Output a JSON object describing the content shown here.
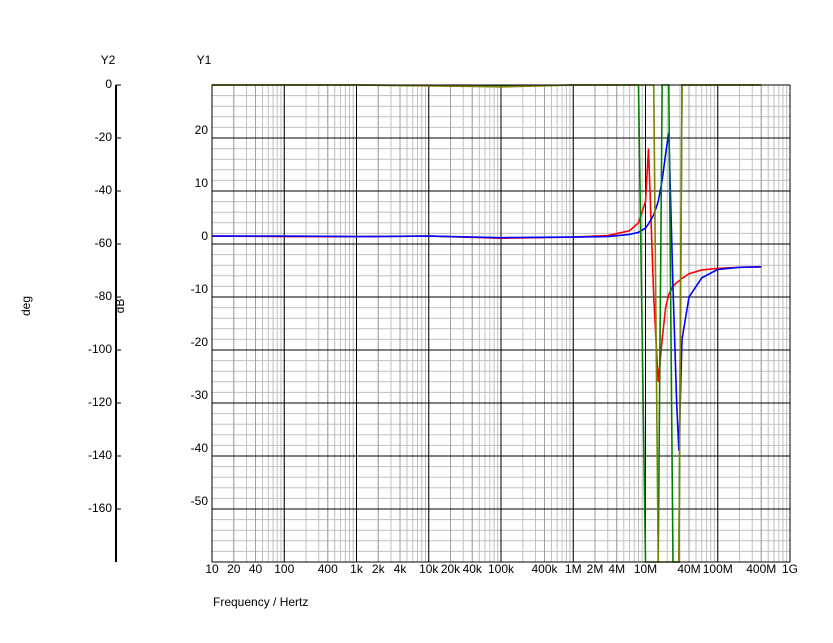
{
  "chart_data": {
    "type": "line",
    "x_label": "Frequency / Hertz",
    "y_label": "dB",
    "y2_label": "deg",
    "y_axis_title": "Y1",
    "y2_axis_title": "Y2",
    "xscale": "log",
    "grid": true,
    "xlim": [
      10,
      1000000000
    ],
    "xticks": [
      10,
      20,
      40,
      100,
      400,
      {
        "value": 1000,
        "label": "1k"
      },
      {
        "value": 2000,
        "label": "2k"
      },
      {
        "value": 4000,
        "label": "4k"
      },
      {
        "value": 10000,
        "label": "10k"
      },
      {
        "value": 20000,
        "label": "20k"
      },
      {
        "value": 40000,
        "label": "40k"
      },
      {
        "value": 100000,
        "label": "100k"
      },
      {
        "value": 400000,
        "label": "400k"
      },
      {
        "value": 1000000,
        "label": "1M"
      },
      {
        "value": 2000000,
        "label": "2M"
      },
      {
        "value": 4000000,
        "label": "4M"
      },
      {
        "value": 10000000,
        "label": "10M"
      },
      {
        "value": 40000000,
        "label": "40M"
      },
      {
        "value": 100000000,
        "label": "100M"
      },
      {
        "value": 400000000,
        "label": "400M"
      },
      {
        "value": 1000000000,
        "label": "1G"
      }
    ],
    "ylim": [
      -60,
      30
    ],
    "yticks": [
      -50,
      -40,
      -30,
      -20,
      -10,
      0,
      10,
      20
    ],
    "y2lim": [
      -180,
      0
    ],
    "y2ticks": [
      0,
      -20,
      -40,
      -60,
      -80,
      -100,
      -120,
      -140,
      -160
    ],
    "x": [
      10,
      100,
      1000,
      10000,
      100000,
      1000000,
      3000000,
      6000000,
      8000000,
      10000000,
      11000000,
      13000000,
      15000000,
      17000000,
      19000000,
      21000000,
      24000000,
      27000000,
      29000000,
      32000000,
      40000000,
      60000000,
      100000000,
      200000000,
      400000000
    ],
    "series": [
      {
        "color": "#ff0000",
        "axis": "y",
        "values": [
          1.5,
          1.4,
          1.4,
          1.5,
          1.1,
          1.3,
          1.6,
          2.5,
          4,
          8,
          18,
          -10,
          -26,
          -18,
          -12,
          -9.5,
          -8,
          -7.3,
          -7,
          -6.5,
          -5.6,
          -4.9,
          -4.6,
          -4.4,
          -4.3
        ]
      },
      {
        "color": "#0000ff",
        "axis": "y",
        "values": [
          1.5,
          1.5,
          1.4,
          1.5,
          1.2,
          1.3,
          1.4,
          1.8,
          2.2,
          3,
          3.8,
          5.5,
          8,
          12,
          17,
          21,
          -8,
          -30,
          -39,
          -18,
          -10,
          -6.4,
          -4.8,
          -4.4,
          -4.3
        ]
      },
      {
        "color": "#008000",
        "axis": "y2",
        "values": [
          0,
          0,
          0,
          -0.2,
          -0.5,
          0,
          0,
          0,
          0,
          -180,
          -180,
          -180,
          -180,
          0,
          0,
          0,
          -180,
          -180,
          -180,
          0,
          0,
          0,
          0,
          0,
          0
        ]
      },
      {
        "color": "#808000",
        "axis": "y2",
        "values": [
          0,
          0,
          0,
          -0.3,
          -0.7,
          0,
          0,
          0,
          0,
          0,
          0,
          0,
          -180,
          -180,
          -180,
          -180,
          -180,
          -180,
          -180,
          0,
          0,
          0,
          0,
          0,
          0
        ]
      }
    ]
  }
}
